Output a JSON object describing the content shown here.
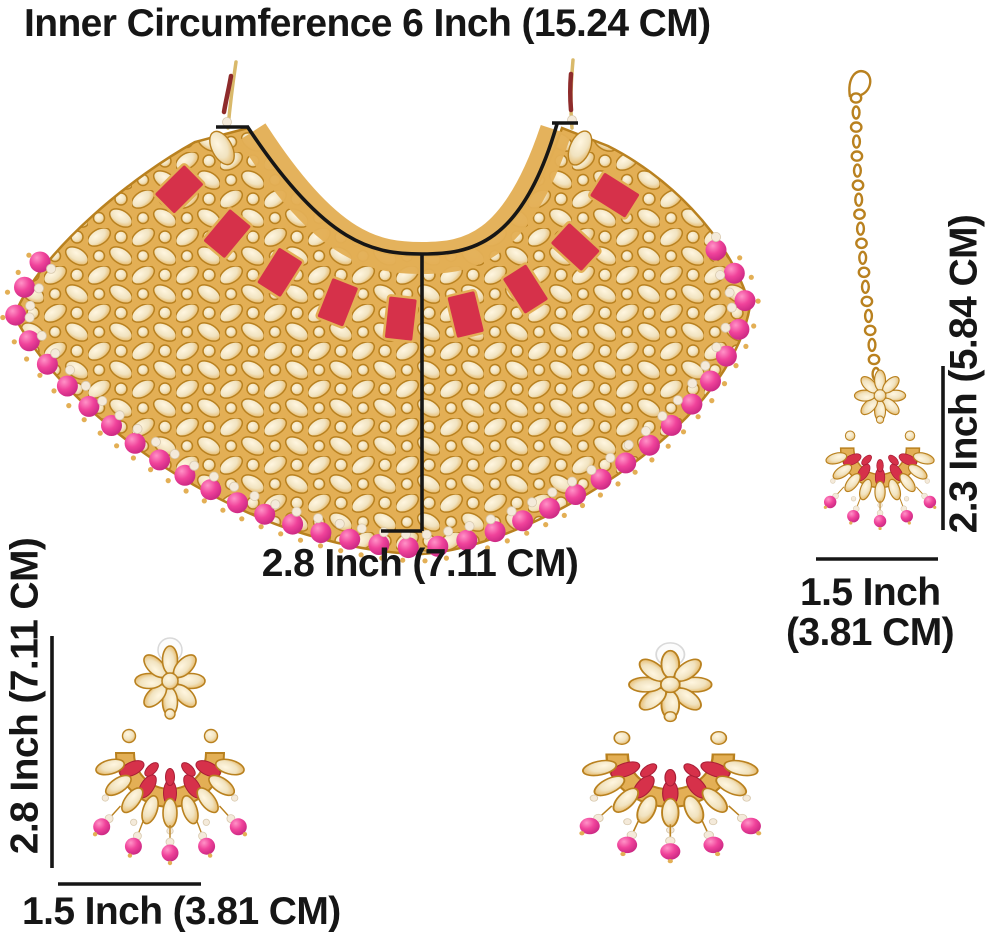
{
  "title": "Inner Circumference 6 Inch (15.24 CM)",
  "labels": {
    "necklace_width": "2.8 Inch (7.11 CM)",
    "tikka_height": "2.3 Inch (5.84 CM)",
    "tikka_width_line1": "1.5 Inch",
    "tikka_width_line2": "(3.81 CM)",
    "earring_height": "2.8 Inch (7.11 CM)",
    "earring_width": "1.5 Inch (3.81 CM)"
  },
  "colors": {
    "bg": "#ffffff",
    "ink": "#161616",
    "gold": "#E3AF55",
    "gold_dark": "#B9811F",
    "gold_light": "#FFF6E0",
    "kundan": "#F1E3C0",
    "red": "#D6314A",
    "red_dark": "#A81E36",
    "pink": "#F0439B",
    "pink_light": "#FF93C7",
    "pink_dark": "#C92782",
    "pearl": "#F4EADA",
    "thread": "#D9B96A",
    "wrap": "#8E2B2B",
    "stud": "#FCFCFC"
  }
}
